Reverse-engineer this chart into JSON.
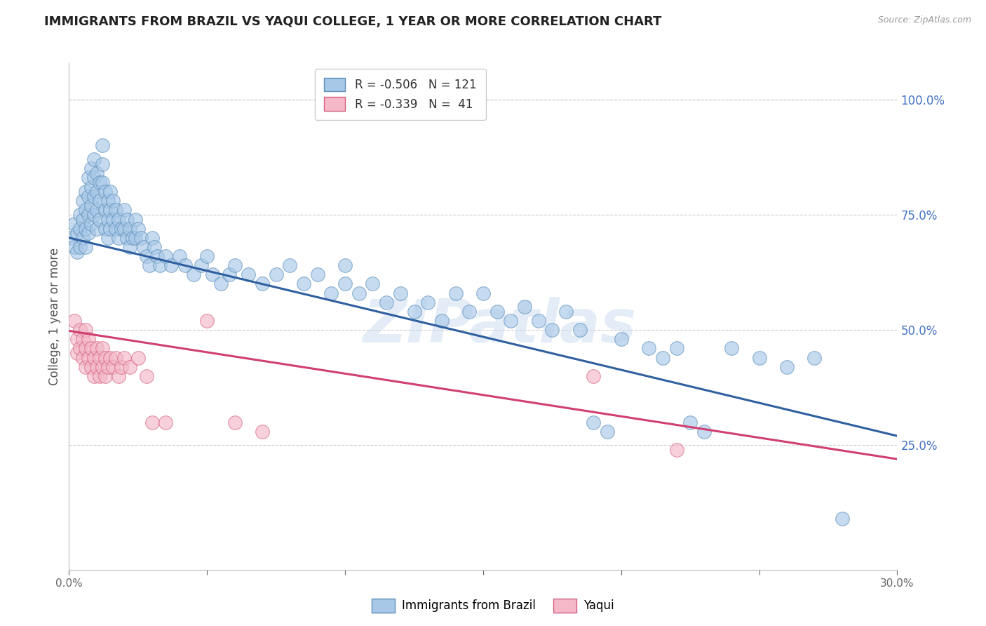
{
  "title": "IMMIGRANTS FROM BRAZIL VS YAQUI COLLEGE, 1 YEAR OR MORE CORRELATION CHART",
  "source": "Source: ZipAtlas.com",
  "ylabel": "College, 1 year or more",
  "x_min": 0.0,
  "x_max": 0.3,
  "y_min": -0.02,
  "y_max": 1.08,
  "x_ticks": [
    0.0,
    0.05,
    0.1,
    0.15,
    0.2,
    0.25,
    0.3
  ],
  "x_tick_labels": [
    "0.0%",
    "",
    "",
    "",
    "",
    "",
    "30.0%"
  ],
  "y_ticks_right": [
    0.25,
    0.5,
    0.75,
    1.0
  ],
  "y_tick_labels_right": [
    "25.0%",
    "50.0%",
    "75.0%",
    "100.0%"
  ],
  "legend_brazil_r": "R = -0.506",
  "legend_brazil_n": "N = 121",
  "legend_yaqui_r": "R = -0.339",
  "legend_yaqui_n": "N =  41",
  "blue_fill": "#a8c8e8",
  "blue_edge": "#5b8db8",
  "pink_fill": "#f4b8c8",
  "pink_edge": "#d46080",
  "blue_line_color": "#3060a0",
  "pink_line_color": "#d04070",
  "background_color": "#ffffff",
  "grid_color": "#cccccc",
  "watermark_text": "ZIPatlas",
  "brazil_intercept": 0.7,
  "brazil_slope": -1.433,
  "yaqui_intercept": 0.498,
  "yaqui_slope": -0.927,
  "brazil_points": [
    [
      0.001,
      0.7
    ],
    [
      0.002,
      0.73
    ],
    [
      0.002,
      0.68
    ],
    [
      0.003,
      0.71
    ],
    [
      0.003,
      0.67
    ],
    [
      0.004,
      0.75
    ],
    [
      0.004,
      0.72
    ],
    [
      0.004,
      0.68
    ],
    [
      0.005,
      0.78
    ],
    [
      0.005,
      0.74
    ],
    [
      0.005,
      0.7
    ],
    [
      0.006,
      0.8
    ],
    [
      0.006,
      0.76
    ],
    [
      0.006,
      0.72
    ],
    [
      0.006,
      0.68
    ],
    [
      0.007,
      0.83
    ],
    [
      0.007,
      0.79
    ],
    [
      0.007,
      0.75
    ],
    [
      0.007,
      0.71
    ],
    [
      0.008,
      0.85
    ],
    [
      0.008,
      0.81
    ],
    [
      0.008,
      0.77
    ],
    [
      0.008,
      0.73
    ],
    [
      0.009,
      0.87
    ],
    [
      0.009,
      0.83
    ],
    [
      0.009,
      0.79
    ],
    [
      0.009,
      0.75
    ],
    [
      0.01,
      0.84
    ],
    [
      0.01,
      0.8
    ],
    [
      0.01,
      0.76
    ],
    [
      0.01,
      0.72
    ],
    [
      0.011,
      0.82
    ],
    [
      0.011,
      0.78
    ],
    [
      0.011,
      0.74
    ],
    [
      0.012,
      0.9
    ],
    [
      0.012,
      0.86
    ],
    [
      0.012,
      0.82
    ],
    [
      0.013,
      0.8
    ],
    [
      0.013,
      0.76
    ],
    [
      0.013,
      0.72
    ],
    [
      0.014,
      0.78
    ],
    [
      0.014,
      0.74
    ],
    [
      0.014,
      0.7
    ],
    [
      0.015,
      0.8
    ],
    [
      0.015,
      0.76
    ],
    [
      0.015,
      0.72
    ],
    [
      0.016,
      0.78
    ],
    [
      0.016,
      0.74
    ],
    [
      0.017,
      0.76
    ],
    [
      0.017,
      0.72
    ],
    [
      0.018,
      0.74
    ],
    [
      0.018,
      0.7
    ],
    [
      0.019,
      0.72
    ],
    [
      0.02,
      0.76
    ],
    [
      0.02,
      0.72
    ],
    [
      0.021,
      0.74
    ],
    [
      0.021,
      0.7
    ],
    [
      0.022,
      0.72
    ],
    [
      0.022,
      0.68
    ],
    [
      0.023,
      0.7
    ],
    [
      0.024,
      0.74
    ],
    [
      0.024,
      0.7
    ],
    [
      0.025,
      0.72
    ],
    [
      0.026,
      0.7
    ],
    [
      0.027,
      0.68
    ],
    [
      0.028,
      0.66
    ],
    [
      0.029,
      0.64
    ],
    [
      0.03,
      0.7
    ],
    [
      0.031,
      0.68
    ],
    [
      0.032,
      0.66
    ],
    [
      0.033,
      0.64
    ],
    [
      0.035,
      0.66
    ],
    [
      0.037,
      0.64
    ],
    [
      0.04,
      0.66
    ],
    [
      0.042,
      0.64
    ],
    [
      0.045,
      0.62
    ],
    [
      0.048,
      0.64
    ],
    [
      0.05,
      0.66
    ],
    [
      0.052,
      0.62
    ],
    [
      0.055,
      0.6
    ],
    [
      0.058,
      0.62
    ],
    [
      0.06,
      0.64
    ],
    [
      0.065,
      0.62
    ],
    [
      0.07,
      0.6
    ],
    [
      0.075,
      0.62
    ],
    [
      0.08,
      0.64
    ],
    [
      0.085,
      0.6
    ],
    [
      0.09,
      0.62
    ],
    [
      0.095,
      0.58
    ],
    [
      0.1,
      0.64
    ],
    [
      0.1,
      0.6
    ],
    [
      0.105,
      0.58
    ],
    [
      0.11,
      0.6
    ],
    [
      0.115,
      0.56
    ],
    [
      0.12,
      0.58
    ],
    [
      0.125,
      0.54
    ],
    [
      0.13,
      0.56
    ],
    [
      0.135,
      0.52
    ],
    [
      0.14,
      0.58
    ],
    [
      0.145,
      0.54
    ],
    [
      0.15,
      0.58
    ],
    [
      0.155,
      0.54
    ],
    [
      0.16,
      0.52
    ],
    [
      0.165,
      0.55
    ],
    [
      0.17,
      0.52
    ],
    [
      0.175,
      0.5
    ],
    [
      0.18,
      0.54
    ],
    [
      0.185,
      0.5
    ],
    [
      0.19,
      0.3
    ],
    [
      0.195,
      0.28
    ],
    [
      0.2,
      0.48
    ],
    [
      0.21,
      0.46
    ],
    [
      0.215,
      0.44
    ],
    [
      0.22,
      0.46
    ],
    [
      0.225,
      0.3
    ],
    [
      0.23,
      0.28
    ],
    [
      0.24,
      0.46
    ],
    [
      0.25,
      0.44
    ],
    [
      0.26,
      0.42
    ],
    [
      0.27,
      0.44
    ],
    [
      0.28,
      0.09
    ]
  ],
  "yaqui_points": [
    [
      0.002,
      0.52
    ],
    [
      0.003,
      0.48
    ],
    [
      0.003,
      0.45
    ],
    [
      0.004,
      0.5
    ],
    [
      0.004,
      0.46
    ],
    [
      0.005,
      0.48
    ],
    [
      0.005,
      0.44
    ],
    [
      0.006,
      0.5
    ],
    [
      0.006,
      0.46
    ],
    [
      0.006,
      0.42
    ],
    [
      0.007,
      0.48
    ],
    [
      0.007,
      0.44
    ],
    [
      0.008,
      0.46
    ],
    [
      0.008,
      0.42
    ],
    [
      0.009,
      0.44
    ],
    [
      0.009,
      0.4
    ],
    [
      0.01,
      0.46
    ],
    [
      0.01,
      0.42
    ],
    [
      0.011,
      0.44
    ],
    [
      0.011,
      0.4
    ],
    [
      0.012,
      0.46
    ],
    [
      0.012,
      0.42
    ],
    [
      0.013,
      0.44
    ],
    [
      0.013,
      0.4
    ],
    [
      0.014,
      0.42
    ],
    [
      0.015,
      0.44
    ],
    [
      0.016,
      0.42
    ],
    [
      0.017,
      0.44
    ],
    [
      0.018,
      0.4
    ],
    [
      0.019,
      0.42
    ],
    [
      0.02,
      0.44
    ],
    [
      0.022,
      0.42
    ],
    [
      0.025,
      0.44
    ],
    [
      0.028,
      0.4
    ],
    [
      0.03,
      0.3
    ],
    [
      0.035,
      0.3
    ],
    [
      0.05,
      0.52
    ],
    [
      0.06,
      0.3
    ],
    [
      0.07,
      0.28
    ],
    [
      0.19,
      0.4
    ],
    [
      0.22,
      0.24
    ]
  ]
}
